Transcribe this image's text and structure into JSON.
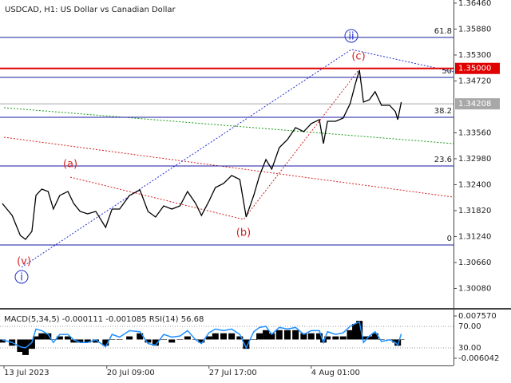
{
  "chart_data": [
    {
      "type": "line",
      "title": "USDCAD, H1:  US Dollar vs Canadian Dollar",
      "series": [
        {
          "name": "USDCAD",
          "color": "#000000",
          "x": [
            -3,
            14,
            28,
            37,
            48,
            55,
            65,
            76,
            85,
            96,
            110,
            120,
            131,
            144,
            158,
            175,
            186,
            199,
            216,
            234,
            248,
            261,
            275,
            289,
            303,
            316,
            330,
            340,
            353,
            364,
            378,
            392,
            406,
            417,
            430,
            440,
            451,
            461,
            474,
            488,
            502,
            516,
            529,
            543,
            550,
            557,
            571,
            584,
            596,
            605,
            612,
            619,
            629,
            639,
            650,
            664,
            674,
            678,
            684
          ],
          "values": [
            1.3198,
            1.31712,
            1.31266,
            1.31177,
            1.31355,
            1.32159,
            1.32301,
            1.32248,
            1.31855,
            1.32159,
            1.32248,
            1.3198,
            1.31802,
            1.31748,
            1.31802,
            1.31445,
            1.31855,
            1.31855,
            1.32159,
            1.32283,
            1.31802,
            1.31677,
            1.31926,
            1.31855,
            1.31926,
            1.32248,
            1.3198,
            1.31712,
            1.32033,
            1.32337,
            1.32426,
            1.32605,
            1.32516,
            1.31677,
            1.32159,
            1.32605,
            1.32962,
            1.32748,
            1.33229,
            1.33408,
            1.33676,
            1.33586,
            1.33765,
            1.33854,
            1.33319,
            1.33818,
            1.33818,
            1.3389,
            1.34211,
            1.34657,
            1.34961,
            1.34247,
            1.343,
            1.34479,
            1.34175,
            1.34175,
            1.34033,
            1.33854,
            1.34247
          ]
        }
      ],
      "xlim": [
        -6.9,
        774
      ],
      "ylim": [
        1.2966,
        1.3653
      ],
      "yticks": [
        {
          "value": 1.3646,
          "label": "1.36460"
        },
        {
          "value": 1.3588,
          "label": "1.35880"
        },
        {
          "value": 1.353,
          "label": "1.35300"
        },
        {
          "value": 1.3472,
          "label": "1.34720"
        },
        {
          "value": 1.3356,
          "label": "1.33560"
        },
        {
          "value": 1.3298,
          "label": "1.32980"
        },
        {
          "value": 1.324,
          "label": "1.32400"
        },
        {
          "value": 1.3182,
          "label": "1.31820"
        },
        {
          "value": 1.3124,
          "label": "1.31240"
        },
        {
          "value": 1.3066,
          "label": "1.30660"
        },
        {
          "value": 1.3008,
          "label": "1.30080"
        }
      ],
      "fib_levels": [
        {
          "level": 61.8,
          "price": 1.35693
        },
        {
          "level": 50.0,
          "price": 1.348
        },
        {
          "level": 38.2,
          "price": 1.33908
        },
        {
          "level": 23.6,
          "price": 1.32819
        },
        {
          "level": 0.0,
          "price": 1.31052
        }
      ],
      "fib_color": "#1a1aa0",
      "levels": [
        {
          "price": 1.35,
          "label": "1.35000",
          "color": "#e00000"
        },
        {
          "price": 1.34208,
          "label": "1.34208",
          "color": "#a8a8a8"
        }
      ],
      "annotations": [
        "(v)",
        "i",
        "(a)",
        "(b)",
        "(c)",
        "ii"
      ]
    },
    {
      "type": "bar",
      "title": "MACD(5,34,5) -0.000111 -0.001085 RSI(14) 56.68",
      "x": [
        -3,
        14,
        28,
        37,
        48,
        55,
        65,
        76,
        85,
        96,
        110,
        120,
        131,
        144,
        158,
        175,
        186,
        199,
        216,
        234,
        248,
        261,
        275,
        289,
        303,
        316,
        330,
        340,
        353,
        364,
        378,
        392,
        406,
        417,
        430,
        440,
        451,
        461,
        474,
        488,
        502,
        516,
        529,
        543,
        550,
        557,
        571,
        584,
        596,
        605,
        612,
        619,
        629,
        639,
        650,
        664,
        674,
        678,
        684
      ],
      "series": [
        {
          "name": "MACD",
          "color": "#000000",
          "values": [
            -0.001,
            -0.002,
            -0.004,
            -0.005,
            -0.003,
            0.001,
            0.002,
            0.002,
            0.0,
            0.001,
            0.001,
            -0.001,
            -0.001,
            -0.001,
            -0.001,
            -0.002,
            0.0,
            0.0,
            0.001,
            0.002,
            -0.001,
            -0.002,
            0.0,
            -0.001,
            0.0,
            0.001,
            0.0,
            -0.001,
            0.001,
            0.002,
            0.002,
            0.002,
            0.001,
            -0.003,
            0.0,
            0.002,
            0.003,
            0.002,
            0.003,
            0.003,
            0.003,
            0.002,
            0.002,
            0.002,
            -0.001,
            0.001,
            0.001,
            0.001,
            0.003,
            0.005,
            0.006,
            0.001,
            0.001,
            0.002,
            0.0,
            0.0,
            -0.001,
            -0.002,
            0.0
          ]
        },
        {
          "name": "RSI",
          "color": "#1e90ff",
          "axis": "y2",
          "values": [
            45,
            40,
            32,
            30,
            40,
            65,
            62,
            55,
            40,
            55,
            55,
            45,
            40,
            40,
            45,
            32,
            55,
            50,
            62,
            60,
            38,
            35,
            55,
            50,
            52,
            62,
            45,
            38,
            58,
            65,
            62,
            65,
            55,
            30,
            60,
            68,
            70,
            55,
            68,
            65,
            68,
            55,
            62,
            62,
            40,
            60,
            55,
            58,
            70,
            75,
            78,
            40,
            52,
            60,
            42,
            45,
            40,
            35,
            56
          ]
        }
      ],
      "xlim": [
        -6.9,
        774
      ],
      "xticks": [
        {
          "value": 0,
          "label": "13 Jul 2023"
        },
        {
          "value": 177,
          "label": "20 Jul 09:00"
        },
        {
          "value": 353,
          "label": "27 Jul 17:00"
        },
        {
          "value": 529,
          "label": "4 Aug 01:00"
        }
      ],
      "ylim": [
        -0.00836,
        0.00937
      ],
      "yticks": [
        {
          "value": 0.00757,
          "label": "0.007570"
        },
        {
          "value": -0.006042,
          "label": "-0.006042"
        }
      ],
      "y2lim": [
        -2.6,
        99.6
      ],
      "y2ticks": [
        {
          "value": 70,
          "label": "70.00"
        },
        {
          "value": 30,
          "label": "30.00"
        }
      ]
    }
  ]
}
